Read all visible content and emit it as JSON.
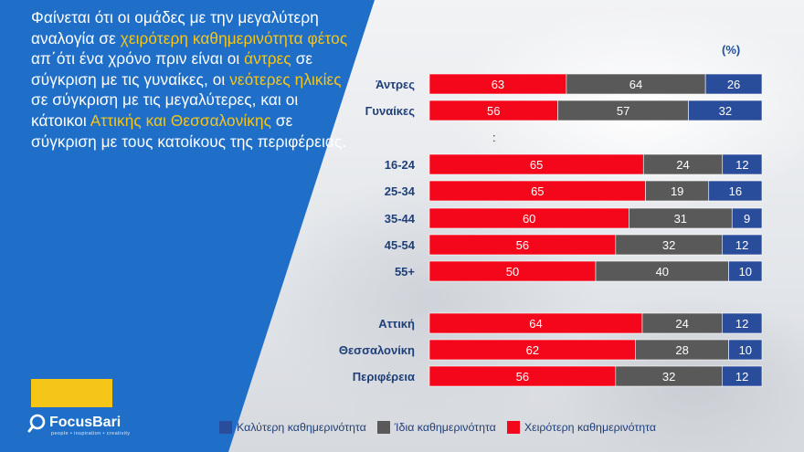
{
  "headline": {
    "t1": "Φαίνεται ότι οι ομάδες με την μεγαλύτερη αναλογία σε ",
    "h1": "χειρότερη καθημερινότητα φέτος",
    "t2": " απ΄ότι ένα χρόνο πριν είναι οι ",
    "h2": "άντρες",
    "t3": " σε σύγκριση με τις γυναίκες, οι ",
    "h3": "νεότερες ηλικίες",
    "t4": " σε σύγκριση με τις μεγαλύτερες, και οι κάτοικοι ",
    "h4": "Αττικής και Θεσσαλονίκης",
    "t5": " σε σύγκριση με τους κατοίκους της περιφέρειας."
  },
  "unit_label": "(%)",
  "separator": ":",
  "logo": {
    "name": "FocusBari",
    "tagline": "people • inspiration • creativity"
  },
  "colors": {
    "worse": "#f4071a",
    "same": "#595959",
    "better": "#2a4d9b",
    "panel": "#1f6fc9",
    "highlight": "#f5c518"
  },
  "chart_data": {
    "type": "bar",
    "orientation": "horizontal",
    "stacked": true,
    "unit": "%",
    "categories": [
      "Άντρες",
      "Γυναίκες",
      "16-24",
      "25-34",
      "35-44",
      "45-54",
      "55+",
      "Αττική",
      "Θεσσαλονίκη",
      "Περιφέρεια"
    ],
    "series": [
      {
        "name": "Χειρότερη  καθημερινότητα",
        "color": "#f4071a",
        "values": [
          63,
          56,
          65,
          65,
          60,
          56,
          50,
          64,
          62,
          56
        ]
      },
      {
        "name": "Ίδια καθημερινότητα",
        "color": "#595959",
        "values": [
          64,
          57,
          24,
          19,
          31,
          32,
          40,
          24,
          28,
          32
        ]
      },
      {
        "name": "Καλύτερη καθημερινότητα",
        "color": "#2a4d9b",
        "values": [
          26,
          32,
          12,
          16,
          9,
          12,
          10,
          12,
          10,
          12
        ]
      }
    ],
    "legend": [
      "Καλύτερη καθημερινότητα",
      "Ίδια καθημερινότητα",
      "Χειρότερη  καθημερινότητα"
    ],
    "legend_position": "bottom"
  }
}
